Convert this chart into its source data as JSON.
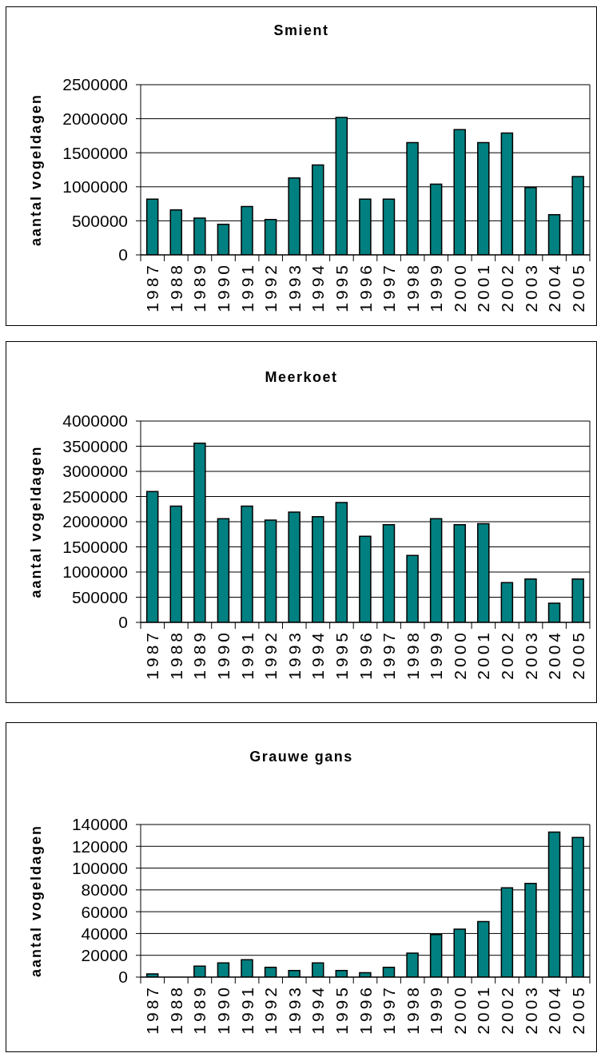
{
  "chart_data": [
    {
      "type": "bar",
      "title": "Smient",
      "ylabel": "aantal vogeldagen",
      "categories": [
        "1987",
        "1988",
        "1989",
        "1990",
        "1991",
        "1992",
        "1993",
        "1994",
        "1995",
        "1996",
        "1997",
        "1998",
        "1999",
        "2000",
        "2001",
        "2002",
        "2003",
        "2004",
        "2005"
      ],
      "values": [
        820000,
        660000,
        540000,
        450000,
        710000,
        520000,
        1130000,
        1320000,
        2020000,
        820000,
        820000,
        1650000,
        1040000,
        1840000,
        1650000,
        1790000,
        990000,
        590000,
        1150000
      ],
      "color": "#008080",
      "ylim": [
        0,
        2500000
      ],
      "yticks": [
        0,
        500000,
        1000000,
        1500000,
        2000000,
        2500000
      ],
      "grid": "y"
    },
    {
      "type": "bar",
      "title": "Meerkoet",
      "ylabel": "aantal vogeldagen",
      "categories": [
        "1987",
        "1988",
        "1989",
        "1990",
        "1991",
        "1992",
        "1993",
        "1994",
        "1995",
        "1996",
        "1997",
        "1998",
        "1999",
        "2000",
        "2001",
        "2002",
        "2003",
        "2004",
        "2005"
      ],
      "values": [
        2600000,
        2310000,
        3560000,
        2060000,
        2310000,
        2030000,
        2190000,
        2100000,
        2380000,
        1710000,
        1940000,
        1330000,
        2060000,
        1940000,
        1960000,
        790000,
        860000,
        380000,
        860000
      ],
      "color": "#008080",
      "ylim": [
        0,
        4000000
      ],
      "yticks": [
        0,
        500000,
        1000000,
        1500000,
        2000000,
        2500000,
        3000000,
        3500000,
        4000000
      ],
      "grid": "y"
    },
    {
      "type": "bar",
      "title": "Grauwe gans",
      "ylabel": "aantal vogeldagen",
      "categories": [
        "1987",
        "1988",
        "1989",
        "1990",
        "1991",
        "1992",
        "1993",
        "1994",
        "1995",
        "1996",
        "1997",
        "1998",
        "1999",
        "2000",
        "2001",
        "2002",
        "2003",
        "2004",
        "2005"
      ],
      "values": [
        3000,
        null,
        10000,
        13000,
        16000,
        9000,
        6000,
        13000,
        6000,
        4000,
        9000,
        22000,
        39000,
        44000,
        51000,
        82000,
        86000,
        133000,
        128000
      ],
      "color": "#008080",
      "ylim": [
        0,
        140000
      ],
      "yticks": [
        0,
        20000,
        40000,
        60000,
        80000,
        100000,
        120000,
        140000
      ],
      "grid": "y"
    }
  ]
}
